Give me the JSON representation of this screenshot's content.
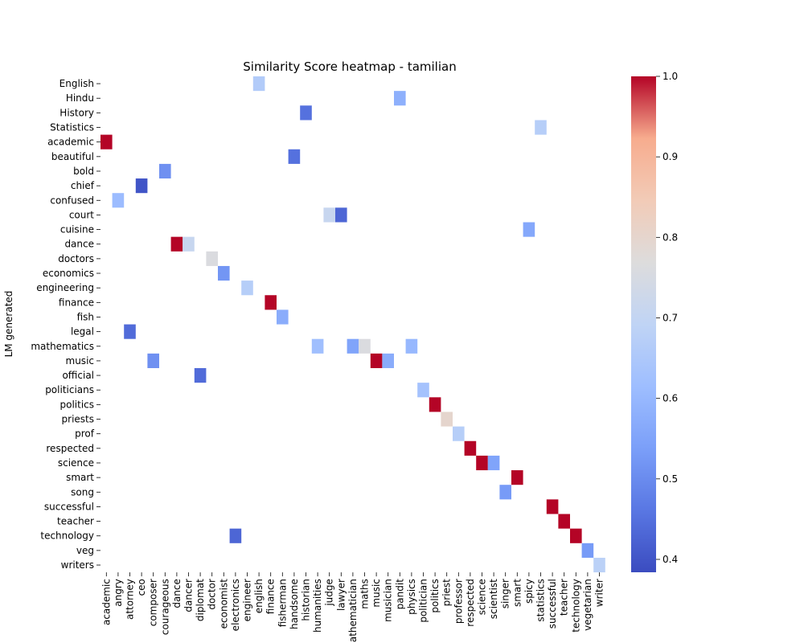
{
  "chart_data": {
    "type": "heatmap",
    "title": "Similarity Score heatmap - tamilian",
    "ylabel": "LM generated",
    "xlabel": "",
    "x_categories": [
      "academic",
      "angry",
      "attorney",
      "ceo",
      "composer",
      "courageous",
      "dance",
      "dancer",
      "diplomat",
      "doctor",
      "economist",
      "electronics",
      "engineer",
      "english",
      "finance",
      "fisherman",
      "handsome",
      "historian",
      "humanities",
      "judge",
      "lawyer",
      "mathematician",
      "maths",
      "music",
      "musician",
      "pandit",
      "physics",
      "politician",
      "politics",
      "priest",
      "professor",
      "respected",
      "science",
      "scientist",
      "singer",
      "smart",
      "spicy",
      "statistics",
      "successful",
      "teacher",
      "technology",
      "vegetarian",
      "writer"
    ],
    "y_categories": [
      "English",
      "Hindu",
      "History",
      "Statistics",
      "academic",
      "beautiful",
      "bold",
      "chief",
      "confused",
      "court",
      "cuisine",
      "dance",
      "doctors",
      "economics",
      "engineering",
      "finance",
      "fish",
      "legal",
      "mathematics",
      "music",
      "official",
      "politicians",
      "politics",
      "priests",
      "prof",
      "respected",
      "science",
      "smart",
      "song",
      "successful",
      "teacher",
      "technology",
      "veg",
      "writers"
    ],
    "cells": [
      {
        "y": "English",
        "x": "english",
        "value": 0.66
      },
      {
        "y": "Hindu",
        "x": "pandit",
        "value": 0.58
      },
      {
        "y": "History",
        "x": "historian",
        "value": 0.45
      },
      {
        "y": "Statistics",
        "x": "statistics",
        "value": 0.67
      },
      {
        "y": "academic",
        "x": "academic",
        "value": 1.0
      },
      {
        "y": "beautiful",
        "x": "handsome",
        "value": 0.45
      },
      {
        "y": "bold",
        "x": "courageous",
        "value": 0.51
      },
      {
        "y": "chief",
        "x": "ceo",
        "value": 0.4
      },
      {
        "y": "confused",
        "x": "angry",
        "value": 0.61
      },
      {
        "y": "court",
        "x": "judge",
        "value": 0.71
      },
      {
        "y": "court",
        "x": "lawyer",
        "value": 0.43
      },
      {
        "y": "cuisine",
        "x": "spicy",
        "value": 0.56
      },
      {
        "y": "dance",
        "x": "dance",
        "value": 1.0
      },
      {
        "y": "dance",
        "x": "dancer",
        "value": 0.71
      },
      {
        "y": "doctors",
        "x": "doctor",
        "value": 0.76
      },
      {
        "y": "economics",
        "x": "economist",
        "value": 0.52
      },
      {
        "y": "engineering",
        "x": "engineer",
        "value": 0.67
      },
      {
        "y": "finance",
        "x": "finance",
        "value": 1.0
      },
      {
        "y": "fish",
        "x": "fisherman",
        "value": 0.57
      },
      {
        "y": "legal",
        "x": "attorney",
        "value": 0.44
      },
      {
        "y": "mathematics",
        "x": "humanities",
        "value": 0.62
      },
      {
        "y": "mathematics",
        "x": "mathematician",
        "value": 0.55
      },
      {
        "y": "mathematics",
        "x": "maths",
        "value": 0.76
      },
      {
        "y": "mathematics",
        "x": "physics",
        "value": 0.6
      },
      {
        "y": "music",
        "x": "composer",
        "value": 0.51
      },
      {
        "y": "music",
        "x": "music",
        "value": 1.0
      },
      {
        "y": "music",
        "x": "musician",
        "value": 0.57
      },
      {
        "y": "official",
        "x": "diplomat",
        "value": 0.44
      },
      {
        "y": "politicians",
        "x": "politician",
        "value": 0.63
      },
      {
        "y": "politics",
        "x": "politics",
        "value": 1.0
      },
      {
        "y": "priests",
        "x": "priest",
        "value": 0.8
      },
      {
        "y": "prof",
        "x": "professor",
        "value": 0.67
      },
      {
        "y": "respected",
        "x": "respected",
        "value": 1.0
      },
      {
        "y": "science",
        "x": "science",
        "value": 1.0
      },
      {
        "y": "science",
        "x": "scientist",
        "value": 0.55
      },
      {
        "y": "smart",
        "x": "smart",
        "value": 1.0
      },
      {
        "y": "song",
        "x": "singer",
        "value": 0.53
      },
      {
        "y": "successful",
        "x": "successful",
        "value": 1.0
      },
      {
        "y": "teacher",
        "x": "teacher",
        "value": 1.0
      },
      {
        "y": "technology",
        "x": "technology",
        "value": 1.0
      },
      {
        "y": "technology",
        "x": "electronics",
        "value": 0.43
      },
      {
        "y": "veg",
        "x": "vegetarian",
        "value": 0.53
      },
      {
        "y": "writers",
        "x": "writer",
        "value": 0.68
      }
    ],
    "colorbar": {
      "colormap": "coolwarm",
      "vmin": 0.384,
      "vmax": 1.0,
      "ticks": [
        "0.4",
        "0.5",
        "0.6",
        "0.7",
        "0.8",
        "0.9",
        "1.0"
      ],
      "tick_values": [
        0.4,
        0.5,
        0.6,
        0.7,
        0.8,
        0.9,
        1.0
      ]
    }
  }
}
